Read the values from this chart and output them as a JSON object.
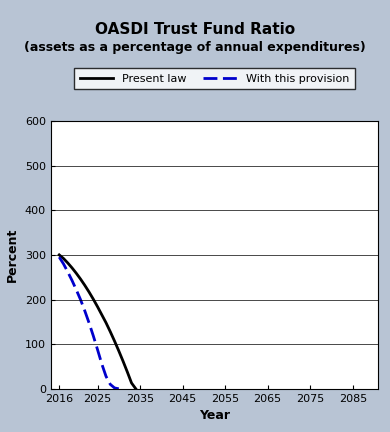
{
  "title": "OASDI Trust Fund Ratio",
  "subtitle": "(assets as a percentage of annual expenditures)",
  "xlabel": "Year",
  "ylabel": "Percent",
  "bg_color": "#b8c4d4",
  "plot_bg_color": "#ffffff",
  "xlim": [
    2014,
    2091
  ],
  "ylim": [
    0,
    600
  ],
  "xticks": [
    2016,
    2025,
    2035,
    2045,
    2055,
    2065,
    2075,
    2085
  ],
  "yticks": [
    0,
    100,
    200,
    300,
    400,
    500,
    600
  ],
  "present_law": {
    "x": [
      2016,
      2017,
      2018,
      2019,
      2020,
      2021,
      2022,
      2023,
      2024,
      2025,
      2026,
      2027,
      2028,
      2029,
      2030,
      2031,
      2032,
      2033,
      2034
    ],
    "y": [
      300,
      292,
      282,
      271,
      259,
      246,
      232,
      217,
      201,
      184,
      166,
      148,
      128,
      107,
      85,
      62,
      38,
      13,
      0
    ],
    "color": "#000000",
    "linewidth": 2.0,
    "label": "Present law"
  },
  "provision": {
    "x": [
      2016,
      2017,
      2018,
      2019,
      2020,
      2021,
      2022,
      2023,
      2024,
      2025,
      2026,
      2027,
      2028,
      2029,
      2030
    ],
    "y": [
      295,
      280,
      262,
      243,
      222,
      200,
      175,
      148,
      119,
      88,
      56,
      28,
      10,
      2,
      0
    ],
    "color": "#0000cc",
    "linewidth": 2.0,
    "label": "With this provision"
  },
  "legend_fontsize": 8,
  "title_fontsize": 11,
  "subtitle_fontsize": 9,
  "axis_label_fontsize": 9,
  "tick_fontsize": 8
}
